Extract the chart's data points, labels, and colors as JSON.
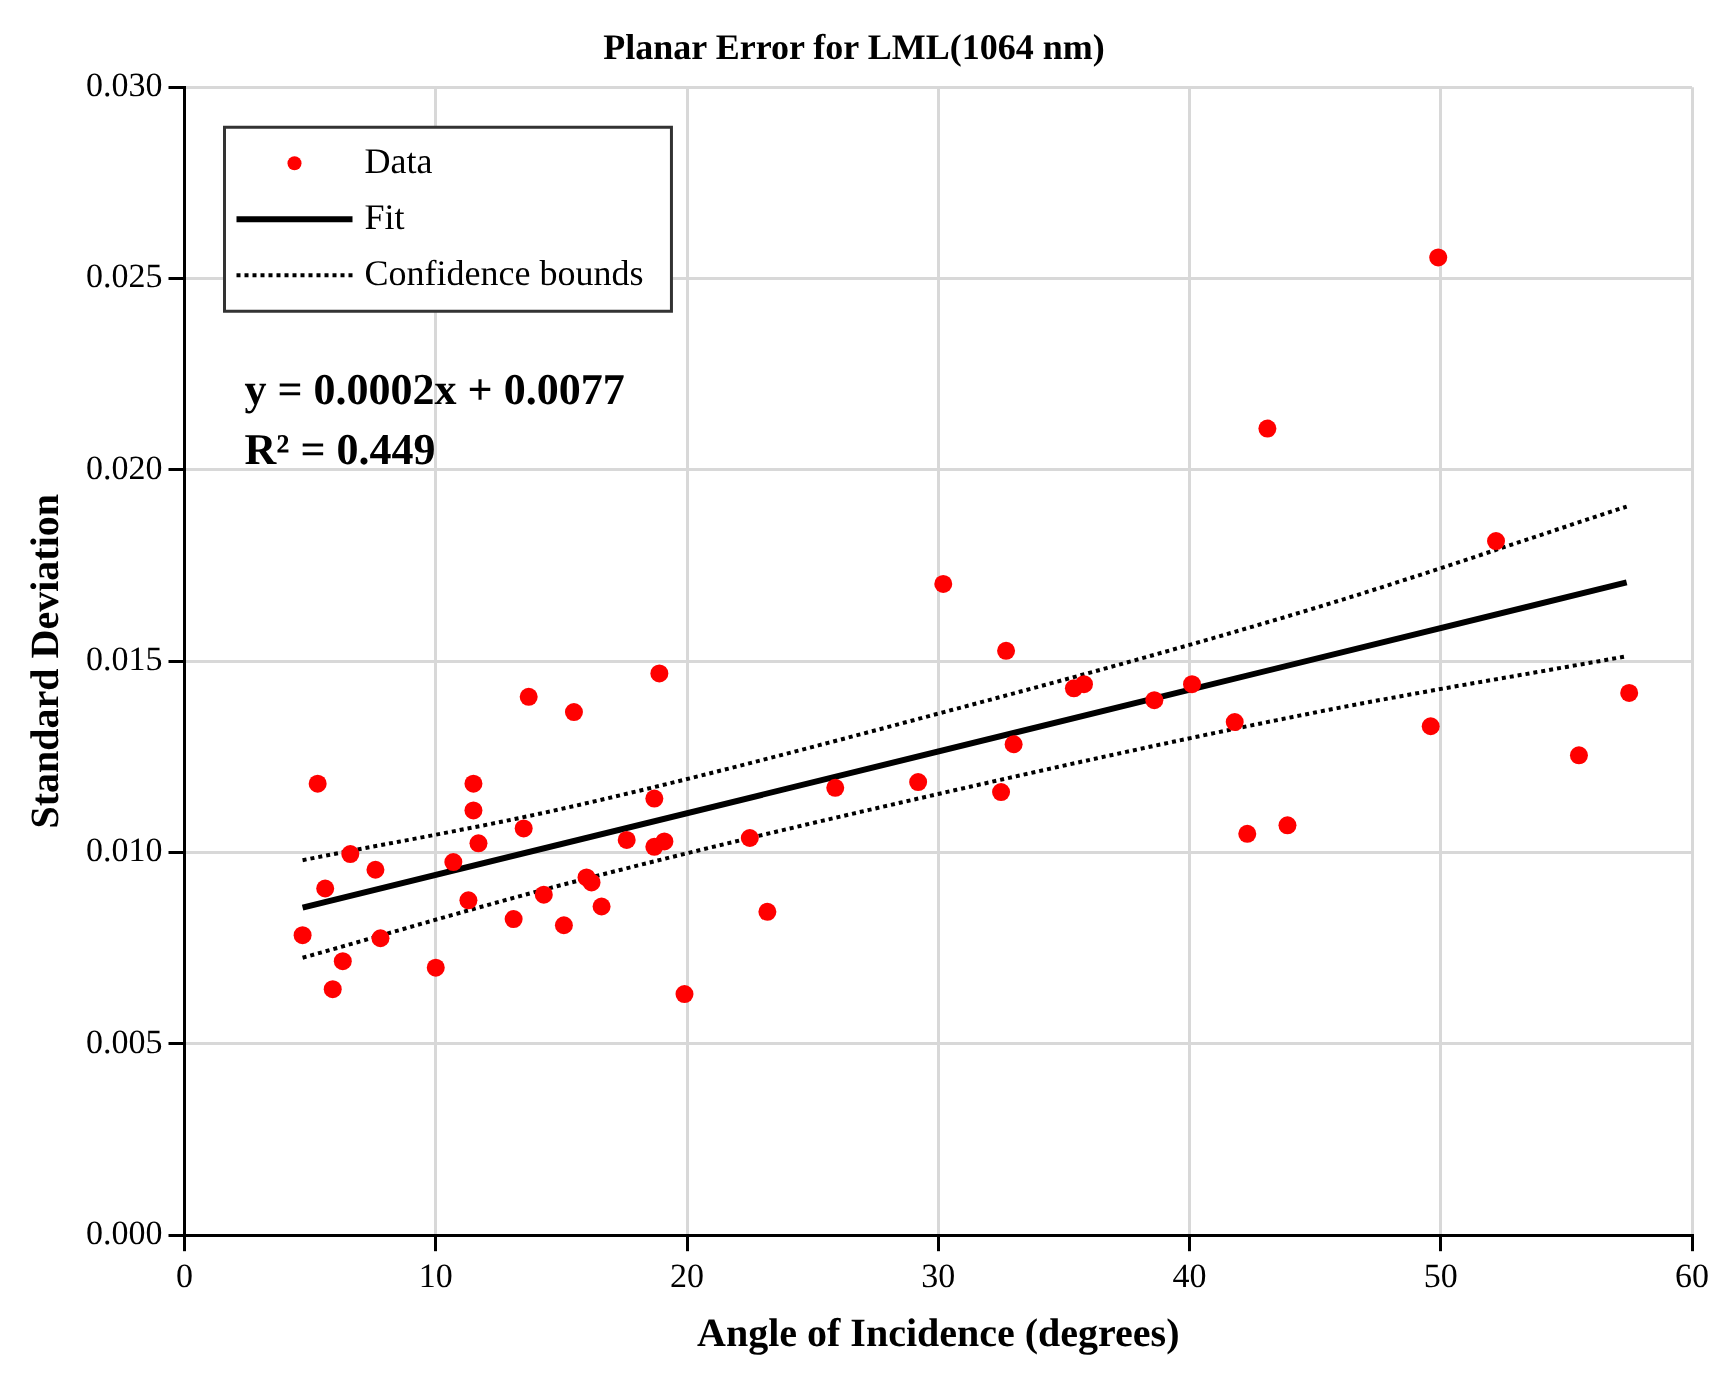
{
  "chart_data": {
    "type": "scatter",
    "title": "Planar Error for LML(1064 nm)",
    "xlabel": "Angle of Incidence (degrees)",
    "ylabel": "Standard Deviation",
    "xlim": [
      0,
      60
    ],
    "xticks": [
      0,
      10,
      20,
      30,
      40,
      50,
      60
    ],
    "ylim": [
      0,
      0.03
    ],
    "yticks": [
      {
        "value": 0,
        "label": "0.000"
      },
      {
        "value": 0.005,
        "label": "0.005"
      },
      {
        "value": 0.01,
        "label": "0.010"
      },
      {
        "value": 0.015,
        "label": "0.015"
      },
      {
        "value": 0.02,
        "label": "0.020"
      },
      {
        "value": 0.025,
        "label": "0.025"
      },
      {
        "value": 0.03,
        "label": "0.030"
      }
    ],
    "grid": true,
    "legend": "top left",
    "marker": "circle",
    "annotations": [
      "y = 0.0002x + 0.0077",
      "R² = 0.449"
    ],
    "series": [
      {
        "name": "Data",
        "color": "#ff0000",
        "x": [
          4.7,
          5.3,
          5.6,
          5.9,
          6.3,
          6.6,
          7.6,
          7.8,
          10.0,
          10.7,
          11.3,
          11.5,
          11.5,
          11.7,
          13.1,
          13.5,
          13.7,
          14.3,
          15.1,
          15.5,
          16.0,
          16.2,
          16.6,
          17.6,
          18.7,
          18.9,
          18.7,
          19.1,
          19.9,
          23.2,
          22.5,
          25.9,
          29.2,
          30.2,
          32.5,
          32.7,
          33.0,
          35.4,
          35.8,
          38.6,
          40.1,
          41.8,
          42.3,
          43.1,
          43.9,
          49.6,
          49.9,
          52.2,
          55.5,
          57.5
        ],
        "values": [
          0.00784,
          0.0118,
          0.00906,
          0.00643,
          0.00716,
          0.00996,
          0.00955,
          0.00776,
          0.00699,
          0.00975,
          0.00875,
          0.0118,
          0.0111,
          0.01024,
          0.00826,
          0.01063,
          0.01407,
          0.0089,
          0.0081,
          0.01367,
          0.00935,
          0.00922,
          0.00859,
          0.01033,
          0.01141,
          0.01468,
          0.01015,
          0.01029,
          0.0063,
          0.00845,
          0.01038,
          0.01169,
          0.01184,
          0.01702,
          0.01158,
          0.01527,
          0.01283,
          0.01429,
          0.0144,
          0.01398,
          0.0144,
          0.01341,
          0.01049,
          0.02108,
          0.01071,
          0.0133,
          0.02555,
          0.01814,
          0.01254,
          0.01417
        ]
      },
      {
        "name": "Fit",
        "type": "line",
        "color": "#000000",
        "line_style": "solid",
        "marker": "none",
        "x": [
          4.7,
          57.4
        ],
        "values": [
          0.00856,
          0.01706
        ]
      },
      {
        "name": "Confidence bounds",
        "type": "line",
        "color": "#000000",
        "line_style": "dotted",
        "marker": "none",
        "x": [
          4.7,
          15,
          30,
          45,
          57.4
        ],
        "values": [
          0.0098,
          0.01114,
          0.01363,
          0.01639,
          0.01904
        ]
      },
      {
        "type": "line",
        "color": "#000000",
        "line_style": "dotted",
        "marker": "none",
        "x": [
          4.7,
          15,
          30,
          45,
          57.4
        ],
        "values": [
          0.00725,
          0.00915,
          0.01153,
          0.01366,
          0.01513
        ]
      }
    ]
  }
}
